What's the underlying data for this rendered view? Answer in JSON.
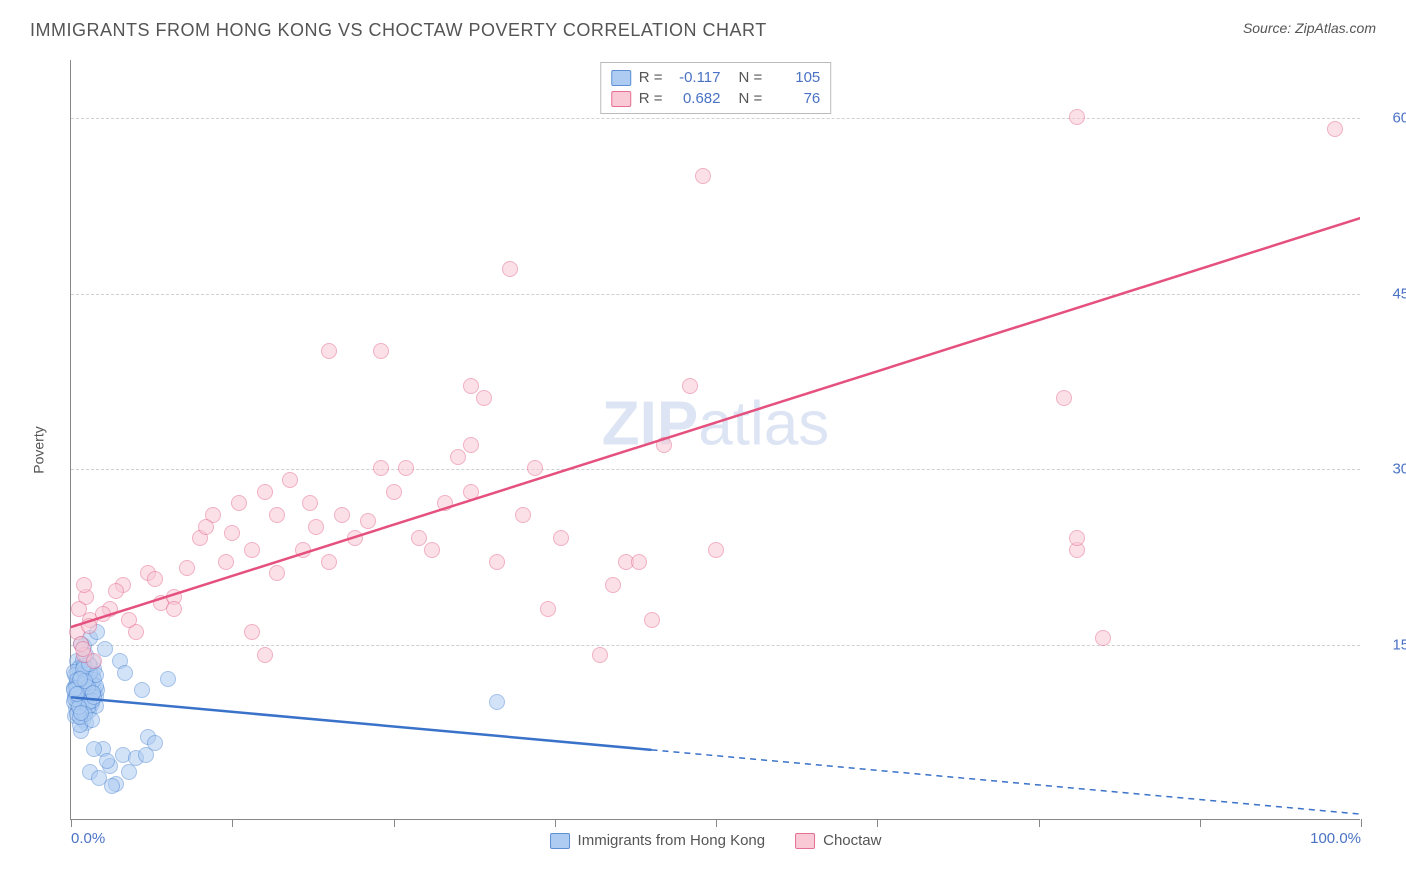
{
  "title": "IMMIGRANTS FROM HONG KONG VS CHOCTAW POVERTY CORRELATION CHART",
  "source_label": "Source: ZipAtlas.com",
  "watermark_zip": "ZIP",
  "watermark_atlas": "atlas",
  "y_axis_label": "Poverty",
  "chart": {
    "type": "scatter",
    "background_color": "#ffffff",
    "grid_color": "#d0d0d0",
    "axis_color": "#888888",
    "text_color": "#555555",
    "value_color": "#4a72c4",
    "xlim": [
      0,
      100
    ],
    "ylim": [
      0,
      65
    ],
    "x_ticks": [
      0,
      12.5,
      25,
      37.5,
      50,
      62.5,
      75,
      87.5,
      100
    ],
    "x_tick_labels_shown": {
      "0": "0.0%",
      "100": "100.0%"
    },
    "y_grid": [
      15,
      30,
      45,
      60
    ],
    "y_tick_labels": {
      "15": "15.0%",
      "30": "30.0%",
      "45": "45.0%",
      "60": "60.0%"
    },
    "marker_radius": 8,
    "marker_opacity": 0.55,
    "line_width": 2.5
  },
  "series": [
    {
      "name": "Immigrants from Hong Kong",
      "color_fill": "#aeccf2",
      "color_stroke": "#5b8fd6",
      "color_line": "#3a72c9",
      "r_value": "-0.117",
      "n_value": "105",
      "trend": {
        "x1": 0,
        "y1": 10.5,
        "x2": 100,
        "y2": 0.5,
        "solid_until_x": 45
      },
      "points": [
        [
          0.5,
          11
        ],
        [
          0.8,
          10
        ],
        [
          1,
          9
        ],
        [
          0.6,
          12
        ],
        [
          1.2,
          11.5
        ],
        [
          0.3,
          10.5
        ],
        [
          1.5,
          10
        ],
        [
          0.7,
          13
        ],
        [
          1.8,
          11
        ],
        [
          0.4,
          9.5
        ],
        [
          1.1,
          12
        ],
        [
          0.9,
          8.5
        ],
        [
          1.3,
          10.8
        ],
        [
          0.2,
          11.2
        ],
        [
          1.6,
          9.8
        ],
        [
          0.5,
          12.5
        ],
        [
          1.9,
          10.5
        ],
        [
          0.8,
          11.8
        ],
        [
          1.4,
          9.2
        ],
        [
          0.6,
          10.2
        ],
        [
          2.0,
          11
        ],
        [
          0.3,
          8.8
        ],
        [
          1.7,
          12.2
        ],
        [
          0.9,
          10.9
        ],
        [
          1.2,
          8.2
        ],
        [
          0.4,
          11.5
        ],
        [
          1.5,
          10.3
        ],
        [
          0.7,
          9.3
        ],
        [
          1.8,
          12.8
        ],
        [
          1.0,
          11.3
        ],
        [
          0.5,
          13.5
        ],
        [
          1.3,
          12.0
        ],
        [
          0.8,
          7.5
        ],
        [
          1.6,
          11.6
        ],
        [
          0.2,
          10.0
        ],
        [
          1.9,
          9.7
        ],
        [
          0.6,
          12.9
        ],
        [
          1.4,
          11.1
        ],
        [
          0.9,
          10.4
        ],
        [
          1.1,
          13.0
        ],
        [
          0.3,
          12.3
        ],
        [
          1.7,
          10.7
        ],
        [
          0.5,
          9.0
        ],
        [
          1.2,
          12.7
        ],
        [
          0.8,
          11.0
        ],
        [
          1.5,
          13.2
        ],
        [
          0.4,
          10.6
        ],
        [
          1.8,
          11.9
        ],
        [
          0.7,
          8.0
        ],
        [
          1.0,
          12.4
        ],
        [
          1.3,
          9.5
        ],
        [
          0.6,
          11.7
        ],
        [
          1.6,
          10.1
        ],
        [
          0.2,
          12.6
        ],
        [
          1.9,
          11.4
        ],
        [
          0.9,
          13.6
        ],
        [
          1.4,
          10.0
        ],
        [
          0.5,
          11.9
        ],
        [
          1.1,
          9.0
        ],
        [
          0.8,
          12.1
        ],
        [
          1.7,
          13.4
        ],
        [
          0.3,
          10.3
        ],
        [
          1.2,
          11.6
        ],
        [
          0.7,
          8.7
        ],
        [
          1.5,
          12.5
        ],
        [
          0.4,
          11.2
        ],
        [
          1.8,
          10.4
        ],
        [
          1.0,
          13.1
        ],
        [
          0.6,
          9.6
        ],
        [
          1.3,
          11.3
        ],
        [
          0.9,
          12.8
        ],
        [
          1.6,
          8.5
        ],
        [
          0.2,
          11.0
        ],
        [
          1.9,
          12.3
        ],
        [
          0.5,
          10.7
        ],
        [
          1.4,
          13.3
        ],
        [
          0.8,
          9.1
        ],
        [
          1.1,
          11.8
        ],
        [
          0.7,
          12.0
        ],
        [
          1.7,
          10.8
        ],
        [
          2.5,
          6.0
        ],
        [
          3.0,
          4.5
        ],
        [
          1.5,
          4.0
        ],
        [
          4.0,
          5.5
        ],
        [
          3.5,
          3.0
        ],
        [
          2.8,
          5.0
        ],
        [
          4.5,
          4.0
        ],
        [
          2.2,
          3.5
        ],
        [
          5.0,
          5.2
        ],
        [
          3.2,
          2.8
        ],
        [
          6.0,
          7.0
        ],
        [
          5.5,
          11.0
        ],
        [
          6.5,
          6.5
        ],
        [
          7.5,
          12.0
        ],
        [
          3.8,
          13.5
        ],
        [
          2.6,
          14.5
        ],
        [
          1.0,
          14.8
        ],
        [
          1.5,
          15.5
        ],
        [
          0.8,
          15.0
        ],
        [
          1.2,
          14.0
        ],
        [
          33.0,
          10.0
        ],
        [
          1.8,
          6.0
        ],
        [
          4.2,
          12.5
        ],
        [
          5.8,
          5.5
        ],
        [
          2.0,
          16.0
        ]
      ]
    },
    {
      "name": "Choctaw",
      "color_fill": "#f9c9d5",
      "color_stroke": "#e66f93",
      "color_line": "#e5517e",
      "r_value": "0.682",
      "n_value": "76",
      "trend": {
        "x1": 0,
        "y1": 16.5,
        "x2": 100,
        "y2": 51.5,
        "solid_until_x": 100
      },
      "points": [
        [
          0.5,
          16
        ],
        [
          1,
          14
        ],
        [
          1.5,
          17
        ],
        [
          0.8,
          15
        ],
        [
          1.2,
          19
        ],
        [
          1.8,
          13.5
        ],
        [
          0.6,
          18
        ],
        [
          1.4,
          16.5
        ],
        [
          1.0,
          20
        ],
        [
          0.9,
          14.5
        ],
        [
          3,
          18
        ],
        [
          4,
          20
        ],
        [
          2.5,
          17.5
        ],
        [
          3.5,
          19.5
        ],
        [
          5,
          16
        ],
        [
          6,
          21
        ],
        [
          7,
          18.5
        ],
        [
          4.5,
          17
        ],
        [
          8,
          19
        ],
        [
          6.5,
          20.5
        ],
        [
          10,
          24
        ],
        [
          9,
          21.5
        ],
        [
          11,
          26
        ],
        [
          12,
          22
        ],
        [
          13,
          27
        ],
        [
          10.5,
          25
        ],
        [
          14,
          23
        ],
        [
          15,
          28
        ],
        [
          12.5,
          24.5
        ],
        [
          16,
          21
        ],
        [
          18,
          23
        ],
        [
          19,
          25
        ],
        [
          17,
          29
        ],
        [
          20,
          22
        ],
        [
          21,
          26
        ],
        [
          22,
          24
        ],
        [
          23,
          25.5
        ],
        [
          18.5,
          27
        ],
        [
          24,
          30
        ],
        [
          25,
          28
        ],
        [
          15,
          14
        ],
        [
          14,
          16
        ],
        [
          28,
          23
        ],
        [
          30,
          31
        ],
        [
          31,
          32
        ],
        [
          20,
          40
        ],
        [
          24,
          40
        ],
        [
          26,
          30
        ],
        [
          31,
          28
        ],
        [
          31,
          37
        ],
        [
          32,
          36
        ],
        [
          33,
          22
        ],
        [
          34,
          47
        ],
        [
          35,
          26
        ],
        [
          36,
          30
        ],
        [
          37,
          18
        ],
        [
          38,
          24
        ],
        [
          42,
          20
        ],
        [
          43,
          22
        ],
        [
          45,
          17
        ],
        [
          46,
          32
        ],
        [
          48,
          37
        ],
        [
          49,
          55
        ],
        [
          50,
          23
        ],
        [
          78,
          60
        ],
        [
          77,
          36
        ],
        [
          78,
          23
        ],
        [
          78,
          24
        ],
        [
          80,
          15.5
        ],
        [
          98,
          59
        ],
        [
          27,
          24
        ],
        [
          29,
          27
        ],
        [
          41,
          14
        ],
        [
          44,
          22
        ],
        [
          16,
          26
        ],
        [
          8,
          18
        ]
      ]
    }
  ],
  "legend_top": {
    "r_label": "R =",
    "n_label": "N ="
  },
  "legend_bottom_items": [
    {
      "label": "Immigrants from Hong Kong"
    },
    {
      "label": "Choctaw"
    }
  ]
}
